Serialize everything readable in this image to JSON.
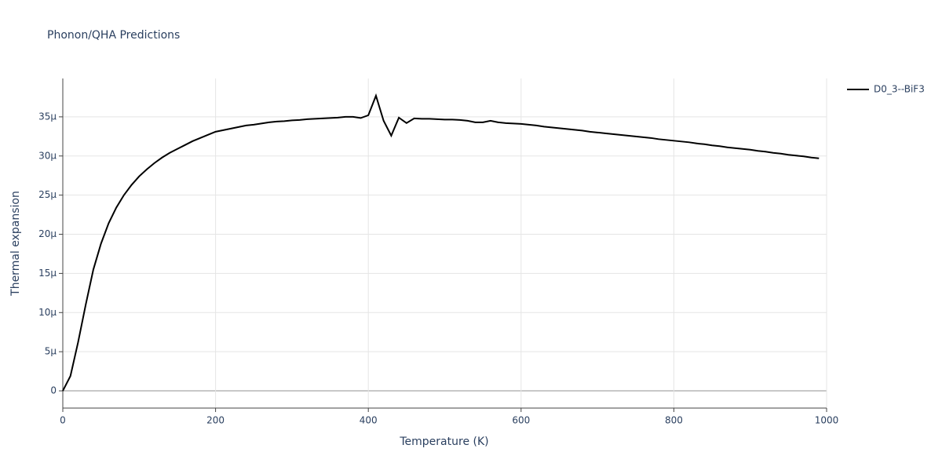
{
  "chart_data": {
    "type": "line",
    "title": "Phonon/QHA Predictions",
    "x_label": "Temperature (K)",
    "y_label": "Thermal expansion",
    "x": [
      0,
      10,
      20,
      30,
      40,
      50,
      60,
      70,
      80,
      90,
      100,
      110,
      120,
      130,
      140,
      150,
      160,
      170,
      180,
      190,
      200,
      210,
      220,
      230,
      240,
      250,
      260,
      270,
      280,
      290,
      300,
      310,
      320,
      330,
      340,
      350,
      360,
      370,
      380,
      390,
      400,
      410,
      420,
      430,
      440,
      450,
      460,
      470,
      480,
      490,
      500,
      510,
      520,
      530,
      540,
      550,
      560,
      570,
      580,
      590,
      600,
      610,
      620,
      630,
      640,
      650,
      660,
      670,
      680,
      690,
      700,
      710,
      720,
      730,
      740,
      750,
      760,
      770,
      780,
      790,
      800,
      810,
      820,
      830,
      840,
      850,
      860,
      870,
      880,
      890,
      900,
      910,
      920,
      930,
      940,
      950,
      960,
      970,
      980,
      990
    ],
    "series": [
      {
        "name": "D0_3--BiF3",
        "color": "#000000",
        "values": [
          0,
          1.9e-06,
          6.2e-06,
          1.1e-05,
          1.55e-05,
          1.88e-05,
          2.14e-05,
          2.34e-05,
          2.5e-05,
          2.63e-05,
          2.74e-05,
          2.83e-05,
          2.91e-05,
          2.98e-05,
          3.04e-05,
          3.09e-05,
          3.14e-05,
          3.19e-05,
          3.23e-05,
          3.27e-05,
          3.31e-05,
          3.33e-05,
          3.35e-05,
          3.37e-05,
          3.39e-05,
          3.4e-05,
          3.415e-05,
          3.43e-05,
          3.44e-05,
          3.445e-05,
          3.455e-05,
          3.46e-05,
          3.47e-05,
          3.475e-05,
          3.48e-05,
          3.485e-05,
          3.49e-05,
          3.5e-05,
          3.5e-05,
          3.485e-05,
          3.52e-05,
          3.77e-05,
          3.45e-05,
          3.26e-05,
          3.49e-05,
          3.42e-05,
          3.48e-05,
          3.475e-05,
          3.475e-05,
          3.47e-05,
          3.465e-05,
          3.465e-05,
          3.46e-05,
          3.45e-05,
          3.43e-05,
          3.43e-05,
          3.45e-05,
          3.43e-05,
          3.42e-05,
          3.415e-05,
          3.41e-05,
          3.4e-05,
          3.39e-05,
          3.375e-05,
          3.365e-05,
          3.355e-05,
          3.345e-05,
          3.335e-05,
          3.325e-05,
          3.31e-05,
          3.3e-05,
          3.29e-05,
          3.28e-05,
          3.27e-05,
          3.26e-05,
          3.25e-05,
          3.24e-05,
          3.23e-05,
          3.215e-05,
          3.205e-05,
          3.195e-05,
          3.185e-05,
          3.175e-05,
          3.16e-05,
          3.15e-05,
          3.135e-05,
          3.125e-05,
          3.11e-05,
          3.1e-05,
          3.09e-05,
          3.08e-05,
          3.065e-05,
          3.055e-05,
          3.04e-05,
          3.03e-05,
          3.015e-05,
          3.005e-05,
          2.995e-05,
          2.98e-05,
          2.97e-05
        ]
      }
    ],
    "xlim": [
      0,
      1000
    ],
    "xticks": [
      0,
      200,
      400,
      600,
      800,
      1000
    ],
    "ylim": [
      -2.2e-06,
      3.99e-05
    ],
    "yticks": [
      0,
      {
        "value": 5e-06,
        "label": "5μ"
      },
      {
        "value": 1e-05,
        "label": "10μ"
      },
      {
        "value": 1.5e-05,
        "label": "15μ"
      },
      {
        "value": 2e-05,
        "label": "20μ"
      },
      {
        "value": 2.5e-05,
        "label": "25μ"
      },
      {
        "value": 3e-05,
        "label": "30μ"
      },
      {
        "value": 3.5e-05,
        "label": "35μ"
      }
    ],
    "grid": true,
    "legend": "right"
  }
}
